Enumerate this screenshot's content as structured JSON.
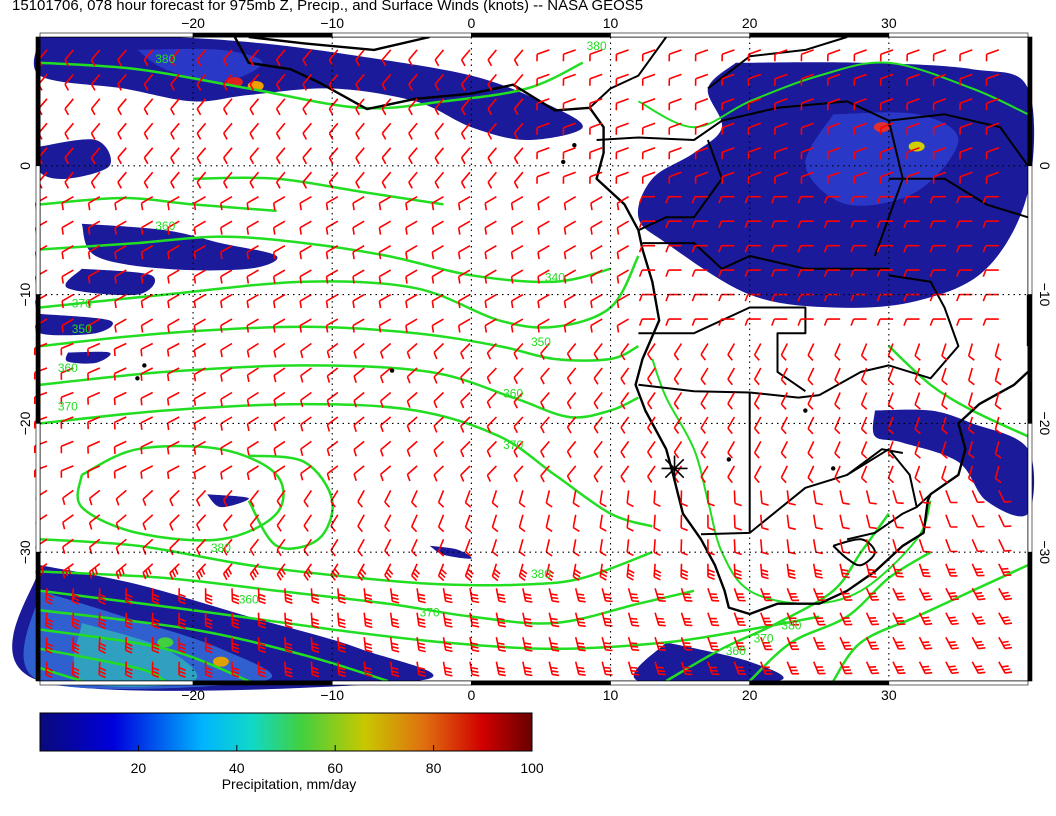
{
  "title": "15101706, 078 hour forecast for 975mb Z, Precip., and Surface Winds (knots) -- NASA GEOS5",
  "map": {
    "lon_range": [
      -31,
      40
    ],
    "lat_range": [
      -40,
      10
    ],
    "lon_ticks": [
      -20,
      -10,
      0,
      10,
      20,
      30
    ],
    "lat_ticks": [
      0,
      -10,
      -20,
      -30
    ],
    "lon_tick_labels": [
      "−20",
      "−10",
      "0",
      "10",
      "20",
      "30"
    ],
    "lat_tick_labels": [
      "0",
      "−10",
      "−20",
      "−30"
    ],
    "contour_labels": [
      {
        "text": "360",
        "lon": -22,
        "lat": -5
      },
      {
        "text": "370",
        "lon": -28,
        "lat": -11
      },
      {
        "text": "350",
        "lon": -28,
        "lat": -13
      },
      {
        "text": "360",
        "lon": -29,
        "lat": -16
      },
      {
        "text": "370",
        "lon": -29,
        "lat": -19
      },
      {
        "text": "340",
        "lon": 6,
        "lat": -9
      },
      {
        "text": "350",
        "lon": 5,
        "lat": -14
      },
      {
        "text": "360",
        "lon": 3,
        "lat": -18
      },
      {
        "text": "370",
        "lon": 3,
        "lat": -22
      },
      {
        "text": "380",
        "lon": 5,
        "lat": -32
      },
      {
        "text": "370",
        "lon": -3,
        "lat": -35
      },
      {
        "text": "380",
        "lon": -18,
        "lat": -30
      },
      {
        "text": "360",
        "lon": -16,
        "lat": -34
      },
      {
        "text": "360",
        "lon": 19,
        "lat": -38
      },
      {
        "text": "370",
        "lon": 21,
        "lat": -37
      },
      {
        "text": "380",
        "lon": 23,
        "lat": -36
      },
      {
        "text": "380",
        "lon": -22,
        "lat": 8
      },
      {
        "text": "380",
        "lon": 9,
        "lat": 9
      }
    ],
    "marker": {
      "symbol": "asterisk",
      "lon": 14.6,
      "lat": -23.5
    },
    "colors": {
      "contour": "#22dd22",
      "wind_barb": "#ff0000",
      "coast": "#000000",
      "grid": "#000000",
      "precip_low": "#101090"
    }
  },
  "colorbar": {
    "label": "Precipitation, mm/day",
    "min": 0,
    "max": 100,
    "ticks": [
      "20",
      "40",
      "60",
      "80",
      "100"
    ]
  }
}
